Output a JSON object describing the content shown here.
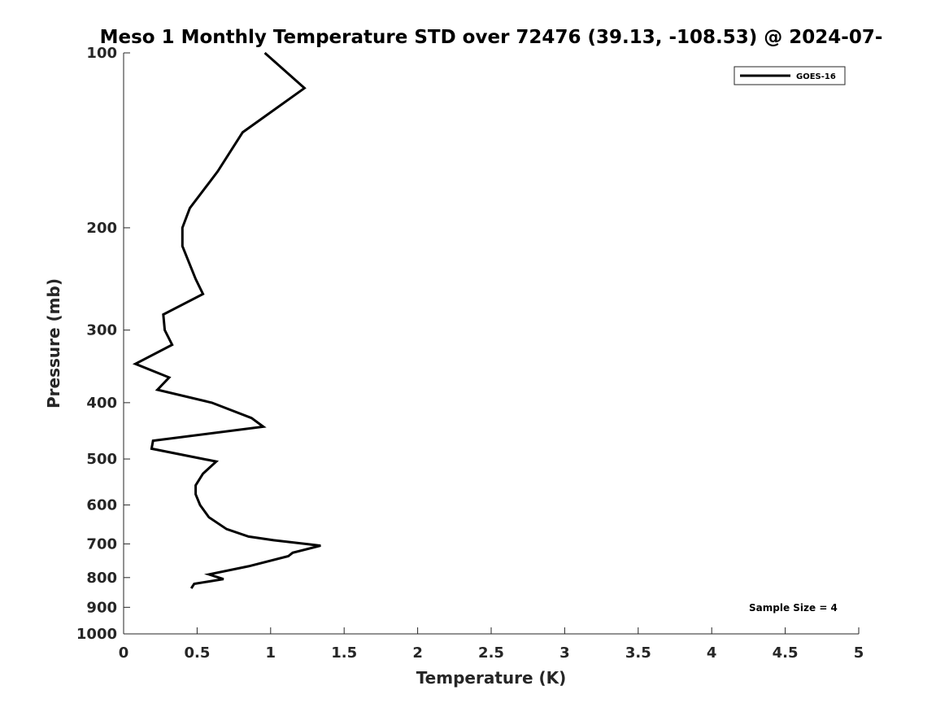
{
  "chart_data": {
    "type": "line",
    "title": "Meso 1 Monthly Temperature STD over 72476 (39.13, -108.53) @ 2024-07-",
    "xlabel": "Temperature (K)",
    "ylabel": "Pressure (mb)",
    "xlim": [
      0,
      5
    ],
    "ylim": [
      100,
      1000
    ],
    "y_scale": "log",
    "y_reversed": true,
    "grid": false,
    "legend_position": "top-right",
    "x_ticks": [
      "0",
      "0.5",
      "1",
      "1.5",
      "2",
      "2.5",
      "3",
      "3.5",
      "4",
      "4.5",
      "5"
    ],
    "y_ticks": [
      "100",
      "200",
      "300",
      "400",
      "500",
      "600",
      "700",
      "800",
      "900",
      "1000"
    ],
    "annotation": "Sample Size = 4",
    "series": [
      {
        "name": "GOES-16",
        "color": "#000000",
        "points": [
          [
            0.96,
            100
          ],
          [
            1.23,
            115
          ],
          [
            0.81,
            137
          ],
          [
            0.64,
            160
          ],
          [
            0.45,
            185
          ],
          [
            0.4,
            200
          ],
          [
            0.4,
            215
          ],
          [
            0.49,
            245
          ],
          [
            0.54,
            260
          ],
          [
            0.27,
            282
          ],
          [
            0.28,
            300
          ],
          [
            0.33,
            318
          ],
          [
            0.08,
            343
          ],
          [
            0.31,
            362
          ],
          [
            0.23,
            380
          ],
          [
            0.6,
            400
          ],
          [
            0.87,
            425
          ],
          [
            0.95,
            440
          ],
          [
            0.2,
            465
          ],
          [
            0.19,
            480
          ],
          [
            0.63,
            505
          ],
          [
            0.54,
            530
          ],
          [
            0.49,
            555
          ],
          [
            0.49,
            575
          ],
          [
            0.52,
            600
          ],
          [
            0.58,
            630
          ],
          [
            0.7,
            660
          ],
          [
            0.85,
            680
          ],
          [
            1.02,
            690
          ],
          [
            1.34,
            705
          ],
          [
            1.15,
            725
          ],
          [
            1.12,
            735
          ],
          [
            0.85,
            765
          ],
          [
            0.58,
            790
          ],
          [
            0.68,
            805
          ],
          [
            0.48,
            820
          ],
          [
            0.46,
            835
          ]
        ]
      }
    ]
  }
}
